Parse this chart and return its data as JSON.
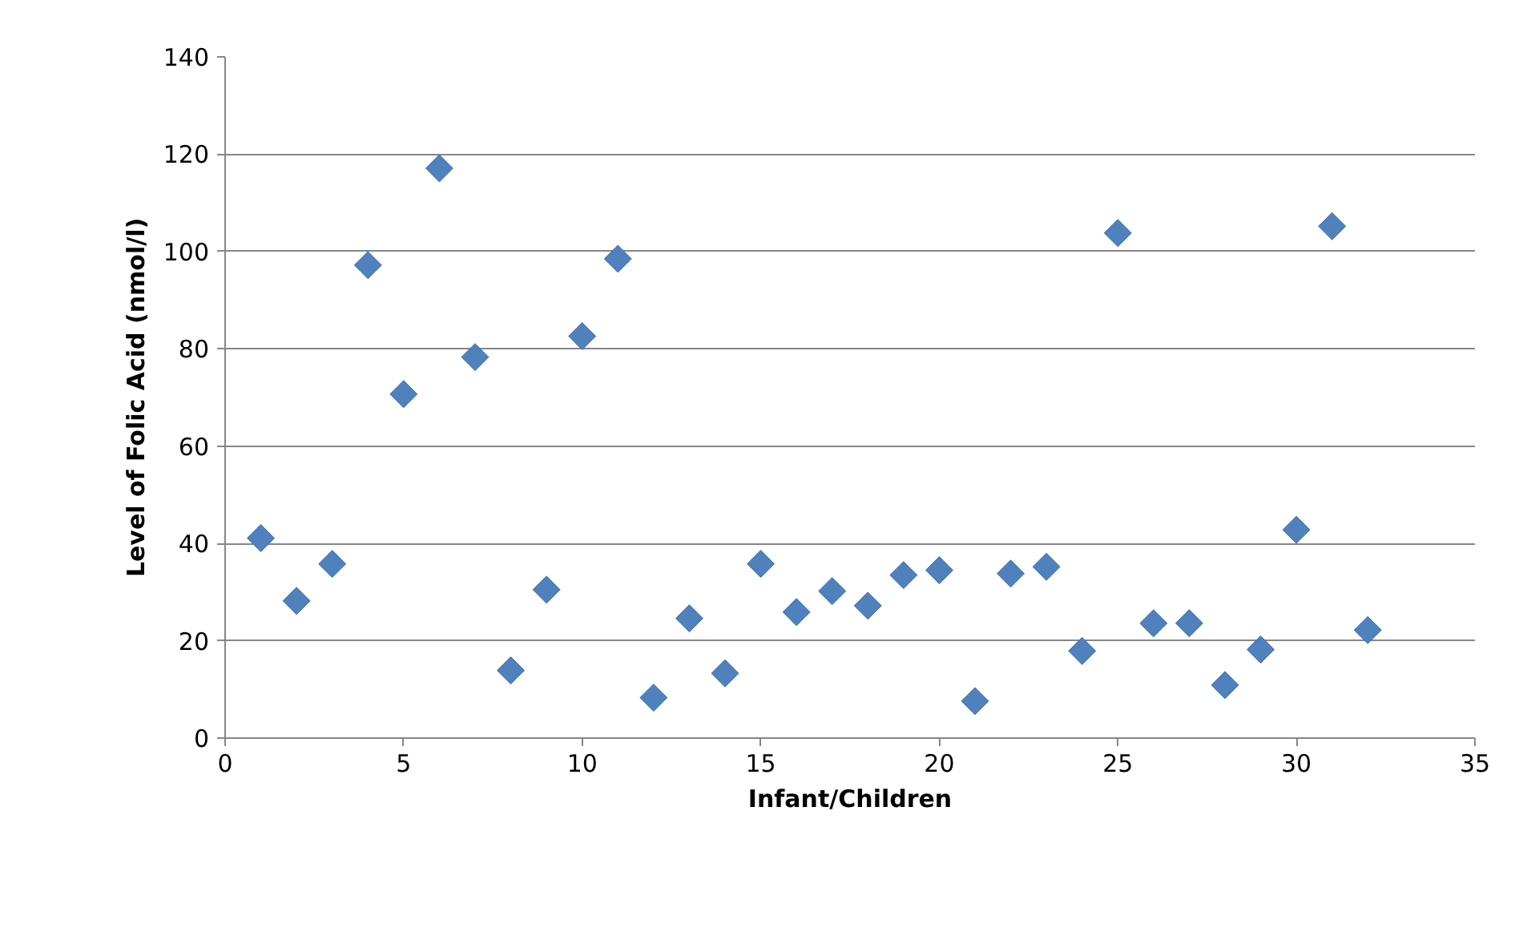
{
  "chart_data": {
    "type": "scatter",
    "xlabel": "Infant/Children",
    "ylabel": "Level of Folic Acid (nmol/l)",
    "x": [
      1,
      2,
      3,
      4,
      5,
      6,
      7,
      8,
      9,
      10,
      11,
      12,
      13,
      14,
      15,
      16,
      17,
      18,
      19,
      20,
      21,
      22,
      23,
      24,
      25,
      26,
      27,
      28,
      29,
      30,
      31,
      32
    ],
    "series": [
      {
        "color": "#4f81bd",
        "values": [
          41.1,
          28.2,
          35.8,
          97.2,
          70.7,
          117.1,
          78.3,
          13.9,
          30.5,
          82.6,
          98.5,
          8.3,
          24.6,
          13.3,
          35.8,
          25.9,
          30.2,
          27.2,
          33.5,
          34.5,
          7.6,
          33.8,
          35.2,
          17.9,
          103.8,
          23.6,
          23.6,
          10.9,
          18.2,
          42.8,
          105.2,
          22.2
        ]
      }
    ],
    "xlim": [
      0,
      35
    ],
    "xticks": [
      0,
      5,
      10,
      15,
      20,
      25,
      30,
      35
    ],
    "ylim": [
      0,
      140
    ],
    "yticks": [
      0,
      20,
      40,
      60,
      80,
      100,
      120,
      140
    ],
    "grid": "y",
    "marker": "diamond"
  }
}
